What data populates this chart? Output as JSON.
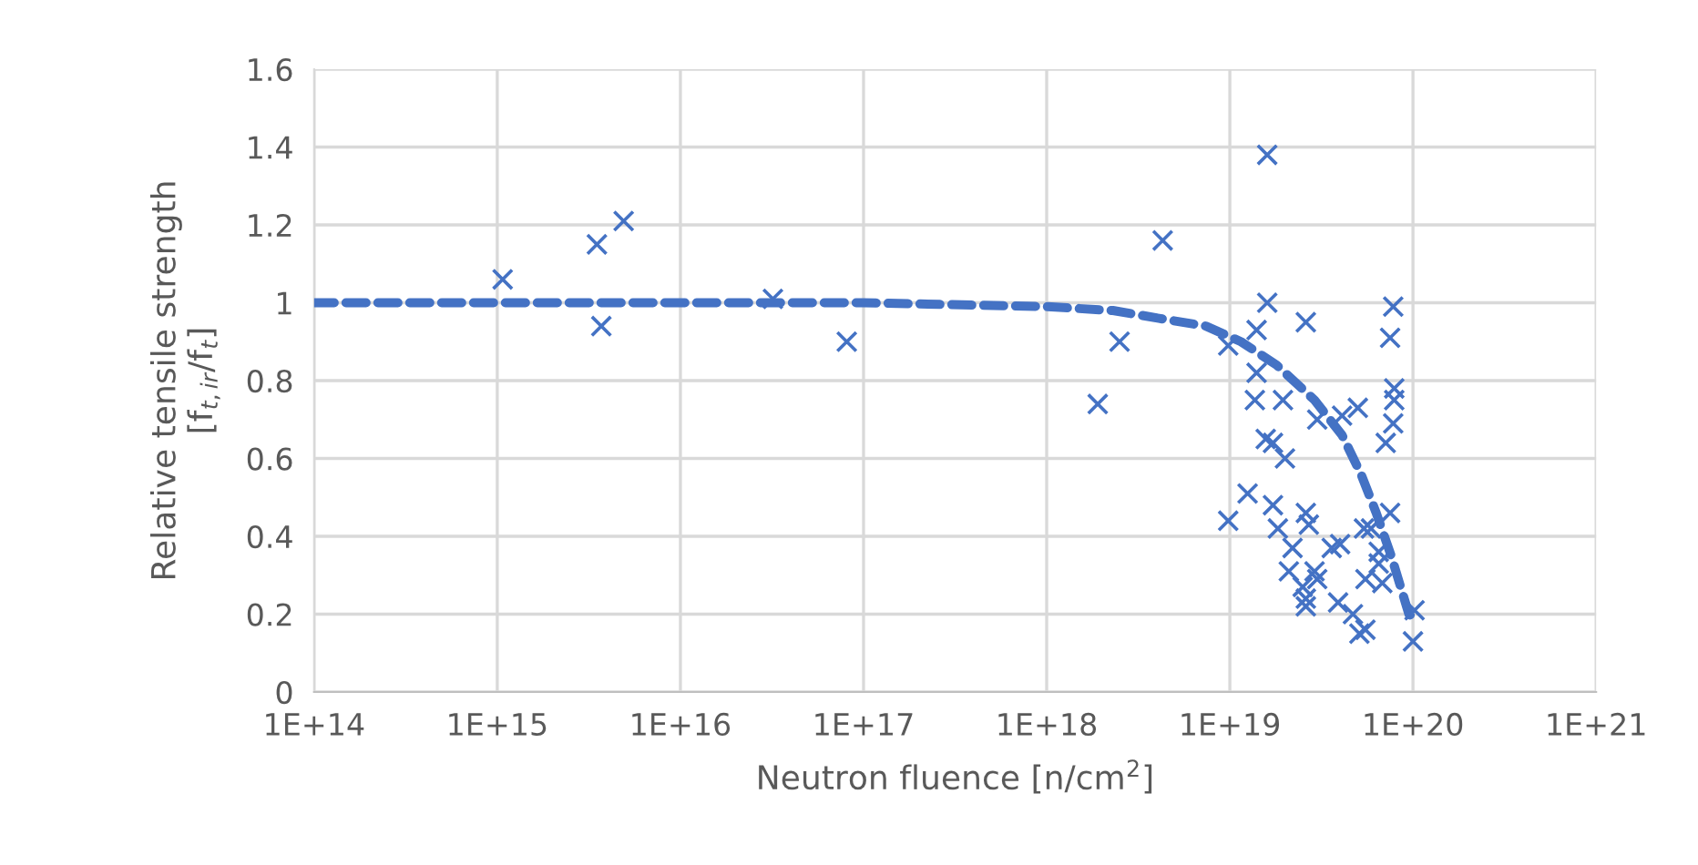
{
  "chart_data": {
    "type": "scatter",
    "xlabel": "Neutron fluence [n/cm$^{2}$]",
    "ylabel": "Relative tensile strength\n[f$_{t,ir}$/f$_{t}$]",
    "log": "x",
    "xlim": [
      100000000000000.0,
      1e+21
    ],
    "xticks": [
      {
        "value": 100000000000000.0,
        "label": "1E+14"
      },
      {
        "value": 1000000000000000.0,
        "label": "1E+15"
      },
      {
        "value": 1e+16,
        "label": "1E+16"
      },
      {
        "value": 1e+17,
        "label": "1E+17"
      },
      {
        "value": 1e+18,
        "label": "1E+18"
      },
      {
        "value": 1e+19,
        "label": "1E+19"
      },
      {
        "value": 1e+20,
        "label": "1E+20"
      },
      {
        "value": 1e+21,
        "label": "1E+21"
      }
    ],
    "ylim": [
      0,
      1.6
    ],
    "yticks": [
      0,
      0.2,
      0.4,
      0.6,
      0.8,
      1,
      1.2,
      1.4,
      1.6
    ],
    "grid": true,
    "series": [
      {
        "color": "#4472c4",
        "marker": "cross",
        "x": [
          1070000000000000.0,
          3500000000000000.0,
          4900000000000000.0,
          3700000000000000.0,
          3.2e+16,
          8.1e+16,
          1.6e+19,
          4.3e+18,
          2.5e+18,
          1.9e+18,
          1.6e+19,
          1.4e+19,
          2.6e+19,
          9.8e+18,
          1.4e+19,
          1.37e+19,
          1.95e+19,
          3e+19,
          4.1e+19,
          5e+19,
          7.8e+19,
          7.5e+19,
          7.9e+19,
          7.9e+19,
          7.8e+19,
          7.1e+19,
          1.57e+19,
          1.72e+19,
          2e+19,
          9.8e+18,
          1.25e+19,
          1.72e+19,
          1.83e+19,
          2.6e+19,
          2.7e+19,
          2.2e+19,
          3.6e+19,
          4e+19,
          2.1e+19,
          2.9e+19,
          3e+19,
          2.5e+19,
          2.6e+19,
          2.6e+19,
          3.9e+19,
          4.7e+19,
          5.1e+19,
          5.5e+19,
          5.4e+19,
          5.9e+19,
          7.5e+19,
          6.5e+19,
          5.5e+19,
          6.8e+19,
          6.5e+19,
          1.02e+20,
          1e+20
        ],
        "values": [
          1.06,
          1.15,
          1.21,
          0.94,
          1.01,
          0.9,
          1.38,
          1.16,
          0.9,
          0.74,
          1.0,
          0.93,
          0.95,
          0.89,
          0.82,
          0.75,
          0.75,
          0.7,
          0.71,
          0.73,
          0.99,
          0.91,
          0.78,
          0.75,
          0.69,
          0.64,
          0.65,
          0.64,
          0.6,
          0.44,
          0.51,
          0.48,
          0.42,
          0.46,
          0.43,
          0.37,
          0.37,
          0.38,
          0.31,
          0.31,
          0.29,
          0.27,
          0.24,
          0.22,
          0.23,
          0.2,
          0.15,
          0.16,
          0.42,
          0.42,
          0.46,
          0.36,
          0.29,
          0.28,
          0.33,
          0.21,
          0.13
        ]
      },
      {
        "type": "line",
        "color": "#4472c4",
        "line_style": "dashed",
        "marker": "none",
        "x": [
          100000000000000.0,
          1000000000000000.0,
          1e+16,
          1e+17,
          1e+18,
          2.3e+18,
          4.1e+18,
          7.4e+18,
          1.15e+19,
          1.8e+19,
          2.9e+19,
          4.1e+19,
          5.2e+19,
          6.3e+19,
          7.6e+19,
          9.5e+19,
          1.02e+20
        ],
        "values": [
          1.0,
          1.0,
          1.0,
          1.0,
          0.99,
          0.98,
          0.96,
          0.94,
          0.9,
          0.84,
          0.75,
          0.66,
          0.56,
          0.46,
          0.35,
          0.2,
          0.19
        ]
      }
    ]
  }
}
